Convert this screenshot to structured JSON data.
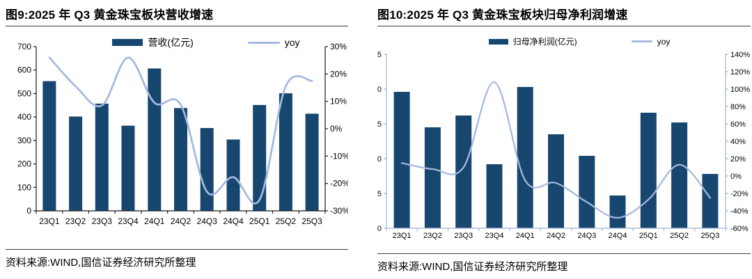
{
  "colors": {
    "bar_fill": "#17476F",
    "yoy_line": "#A6B8DE",
    "axis_dark": "#1A1A1A",
    "axis_light": "#9FB3D6",
    "divider": "#3C3C3C",
    "text": "#000000",
    "background": "#FFFFFF"
  },
  "figures": [
    {
      "title": "图9:2025 年 Q3 黄金珠宝板块营收增速",
      "legend": {
        "bar_label": "营收(亿元)",
        "line_label": "yoy"
      },
      "source": "资料来源:WIND,国信证券经济研究所整理",
      "chart_data": {
        "type": "bar",
        "subtype": "bar+line combo, dual axis",
        "categories": [
          "23Q1",
          "23Q2",
          "23Q3",
          "23Q4",
          "24Q1",
          "24Q2",
          "24Q3",
          "24Q4",
          "25Q1",
          "25Q2",
          "25Q3"
        ],
        "series": [
          {
            "name": "营收(亿元)",
            "type": "bar",
            "axis": "left",
            "values": [
              553,
              402,
              457,
              363,
              607,
              438,
              353,
              304,
              451,
              501,
              414
            ]
          },
          {
            "name": "yoy",
            "type": "line",
            "axis": "right",
            "unit": "%",
            "smooth": true,
            "values": [
              26,
              15.5,
              8.5,
              26,
              9.5,
              8.8,
              -23,
              -17.7,
              -26,
              15.5,
              17.5
            ]
          }
        ],
        "left_axis": {
          "min": 0,
          "max": 700,
          "tick_labels": [
            "700",
            "600",
            "500",
            "400",
            "300",
            "200",
            "100",
            "0"
          ]
        },
        "right_axis": {
          "min": -30,
          "max": 30,
          "tick_labels": [
            "30%",
            "20%",
            "10%",
            "0%",
            "-10%",
            "-20%",
            "-30%"
          ]
        },
        "grid": false,
        "legend_position": "top"
      }
    },
    {
      "title": "图10:2025 年 Q3 黄金珠宝板块归母净利润增速",
      "legend": {
        "bar_label": "归母净利润(亿元)",
        "line_label": "yoy"
      },
      "source": "资料来源:WIND,国信证券经济研究所整理",
      "chart_data": {
        "type": "bar",
        "subtype": "bar+line combo, dual axis",
        "categories": [
          "23Q1",
          "23Q2",
          "23Q3",
          "23Q4",
          "24Q1",
          "24Q2",
          "24Q3",
          "24Q4",
          "25Q1",
          "25Q2",
          "25Q3"
        ],
        "series": [
          {
            "name": "归母净利润(亿元)",
            "type": "bar",
            "axis": "left",
            "values": [
              19.6,
              14.5,
              16.2,
              9.2,
              20.3,
              13.5,
              10.4,
              4.7,
              16.6,
              15.2,
              7.8
            ]
          },
          {
            "name": "yoy",
            "type": "line",
            "axis": "right",
            "unit": "%",
            "smooth": true,
            "values": [
              15,
              8,
              10,
              108,
              -5,
              -8,
              -30,
              -48,
              -27,
              13,
              -25
            ]
          }
        ],
        "left_axis": {
          "min": 0,
          "max": 25,
          "tick_labels": [
            "5",
            "0",
            "5",
            "0",
            "5",
            "0"
          ]
        },
        "right_axis": {
          "min": -60,
          "max": 140,
          "tick_labels": [
            "140%",
            "120%",
            "100%",
            "80%",
            "60%",
            "40%",
            "20%",
            "0%",
            "-20%",
            "-40%",
            "-60%"
          ]
        },
        "grid": false,
        "legend_position": "top"
      }
    }
  ]
}
